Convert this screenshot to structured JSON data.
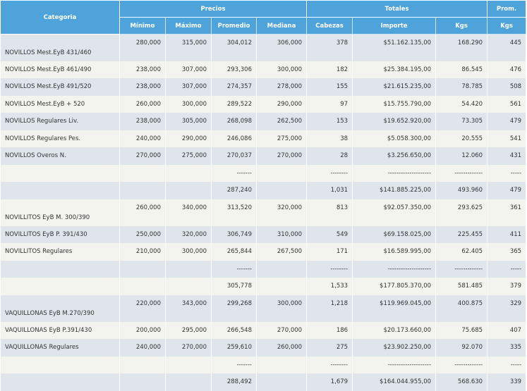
{
  "table": {
    "headers": {
      "categoria": "Categoria",
      "precios": "Precios",
      "totales": "Totales",
      "prom": "Prom.",
      "sub": {
        "minimo": "Mínimo",
        "maximo": "Máximo",
        "promedio": "Promedio",
        "mediana": "Mediana",
        "cabezas": "Cabezas",
        "importe": "Importe",
        "kgs": "Kgs",
        "prom_kgs": "Kgs"
      }
    },
    "rows": [
      {
        "tall": true,
        "categoria": "NOVILLOS Mest.EyB 431/460",
        "minimo": "280,000",
        "maximo": "315,000",
        "promedio": "304,012",
        "mediana": "306,000",
        "cabezas": "378",
        "importe": "$51.162.135,00",
        "kgs": "168.290",
        "prom_kgs": "445"
      },
      {
        "categoria": "NOVILLOS Mest.EyB 461/490",
        "minimo": "238,000",
        "maximo": "307,000",
        "promedio": "293,306",
        "mediana": "300,000",
        "cabezas": "182",
        "importe": "$25.384.195,00",
        "kgs": "86.545",
        "prom_kgs": "476"
      },
      {
        "categoria": "NOVILLOS Mest.EyB 491/520",
        "minimo": "238,000",
        "maximo": "307,000",
        "promedio": "274,357",
        "mediana": "278,000",
        "cabezas": "155",
        "importe": "$21.615.235,00",
        "kgs": "78.785",
        "prom_kgs": "508"
      },
      {
        "categoria": "NOVILLOS Mest.EyB + 520",
        "minimo": "260,000",
        "maximo": "300,000",
        "promedio": "289,522",
        "mediana": "290,000",
        "cabezas": "97",
        "importe": "$15.755.790,00",
        "kgs": "54.420",
        "prom_kgs": "561"
      },
      {
        "categoria": "NOVILLOS Regulares Liv.",
        "minimo": "238,000",
        "maximo": "305,000",
        "promedio": "268,098",
        "mediana": "262,500",
        "cabezas": "153",
        "importe": "$19.652.920,00",
        "kgs": "73.305",
        "prom_kgs": "479"
      },
      {
        "categoria": "NOVILLOS Regulares Pes.",
        "minimo": "240,000",
        "maximo": "290,000",
        "promedio": "246,086",
        "mediana": "275,000",
        "cabezas": "38",
        "importe": "$5.058.300,00",
        "kgs": "20.555",
        "prom_kgs": "541"
      },
      {
        "categoria": "NOVILLOS Overos N.",
        "minimo": "270,000",
        "maximo": "275,000",
        "promedio": "270,037",
        "mediana": "270,000",
        "cabezas": "28",
        "importe": "$3.256.650,00",
        "kgs": "12.060",
        "prom_kgs": "431"
      },
      {
        "promedio": "-------",
        "cabezas": "--------",
        "importe": "--------------------",
        "kgs": "-------------",
        "prom_kgs": "-----"
      },
      {
        "promedio": "287,240",
        "cabezas": "1,031",
        "importe": "$141.885.225,00",
        "kgs": "493.960",
        "prom_kgs": "479"
      },
      {
        "tall": true,
        "categoria": "NOVILLITOS EyB M. 300/390",
        "minimo": "260,000",
        "maximo": "340,000",
        "promedio": "313,520",
        "mediana": "320,000",
        "cabezas": "813",
        "importe": "$92.057.350,00",
        "kgs": "293.625",
        "prom_kgs": "361"
      },
      {
        "categoria": "NOVILLITOS EyB P. 391/430",
        "minimo": "250,000",
        "maximo": "320,000",
        "promedio": "306,749",
        "mediana": "310,000",
        "cabezas": "549",
        "importe": "$69.158.025,00",
        "kgs": "225.455",
        "prom_kgs": "411"
      },
      {
        "categoria": "NOVILLITOS Regulares",
        "minimo": "210,000",
        "maximo": "300,000",
        "promedio": "265,844",
        "mediana": "267,500",
        "cabezas": "171",
        "importe": "$16.589.995,00",
        "kgs": "62.405",
        "prom_kgs": "365"
      },
      {
        "promedio": "-------",
        "cabezas": "--------",
        "importe": "--------------------",
        "kgs": "-------------",
        "prom_kgs": "-----"
      },
      {
        "promedio": "305,778",
        "cabezas": "1,533",
        "importe": "$177.805.370,00",
        "kgs": "581.485",
        "prom_kgs": "379"
      },
      {
        "tall": true,
        "categoria": "VAQUILLONAS EyB M.270/390",
        "minimo": "220,000",
        "maximo": "343,000",
        "promedio": "299,268",
        "mediana": "300,000",
        "cabezas": "1,218",
        "importe": "$119.969.045,00",
        "kgs": "400.875",
        "prom_kgs": "329"
      },
      {
        "categoria": "VAQUILLONAS EyB P.391/430",
        "minimo": "200,000",
        "maximo": "295,000",
        "promedio": "266,548",
        "mediana": "270,000",
        "cabezas": "186",
        "importe": "$20.173.660,00",
        "kgs": "75.685",
        "prom_kgs": "407"
      },
      {
        "categoria": "VAQUILLONAS Regulares",
        "minimo": "240,000",
        "maximo": "270,000",
        "promedio": "259,610",
        "mediana": "260,000",
        "cabezas": "275",
        "importe": "$23.902.250,00",
        "kgs": "92.070",
        "prom_kgs": "335"
      },
      {
        "promedio": "-------",
        "cabezas": "--------",
        "importe": "--------------------",
        "kgs": "-------------",
        "prom_kgs": "-----"
      },
      {
        "promedio": "288,492",
        "cabezas": "1,679",
        "importe": "$164.044.955,00",
        "kgs": "568.630",
        "prom_kgs": "339"
      }
    ]
  }
}
